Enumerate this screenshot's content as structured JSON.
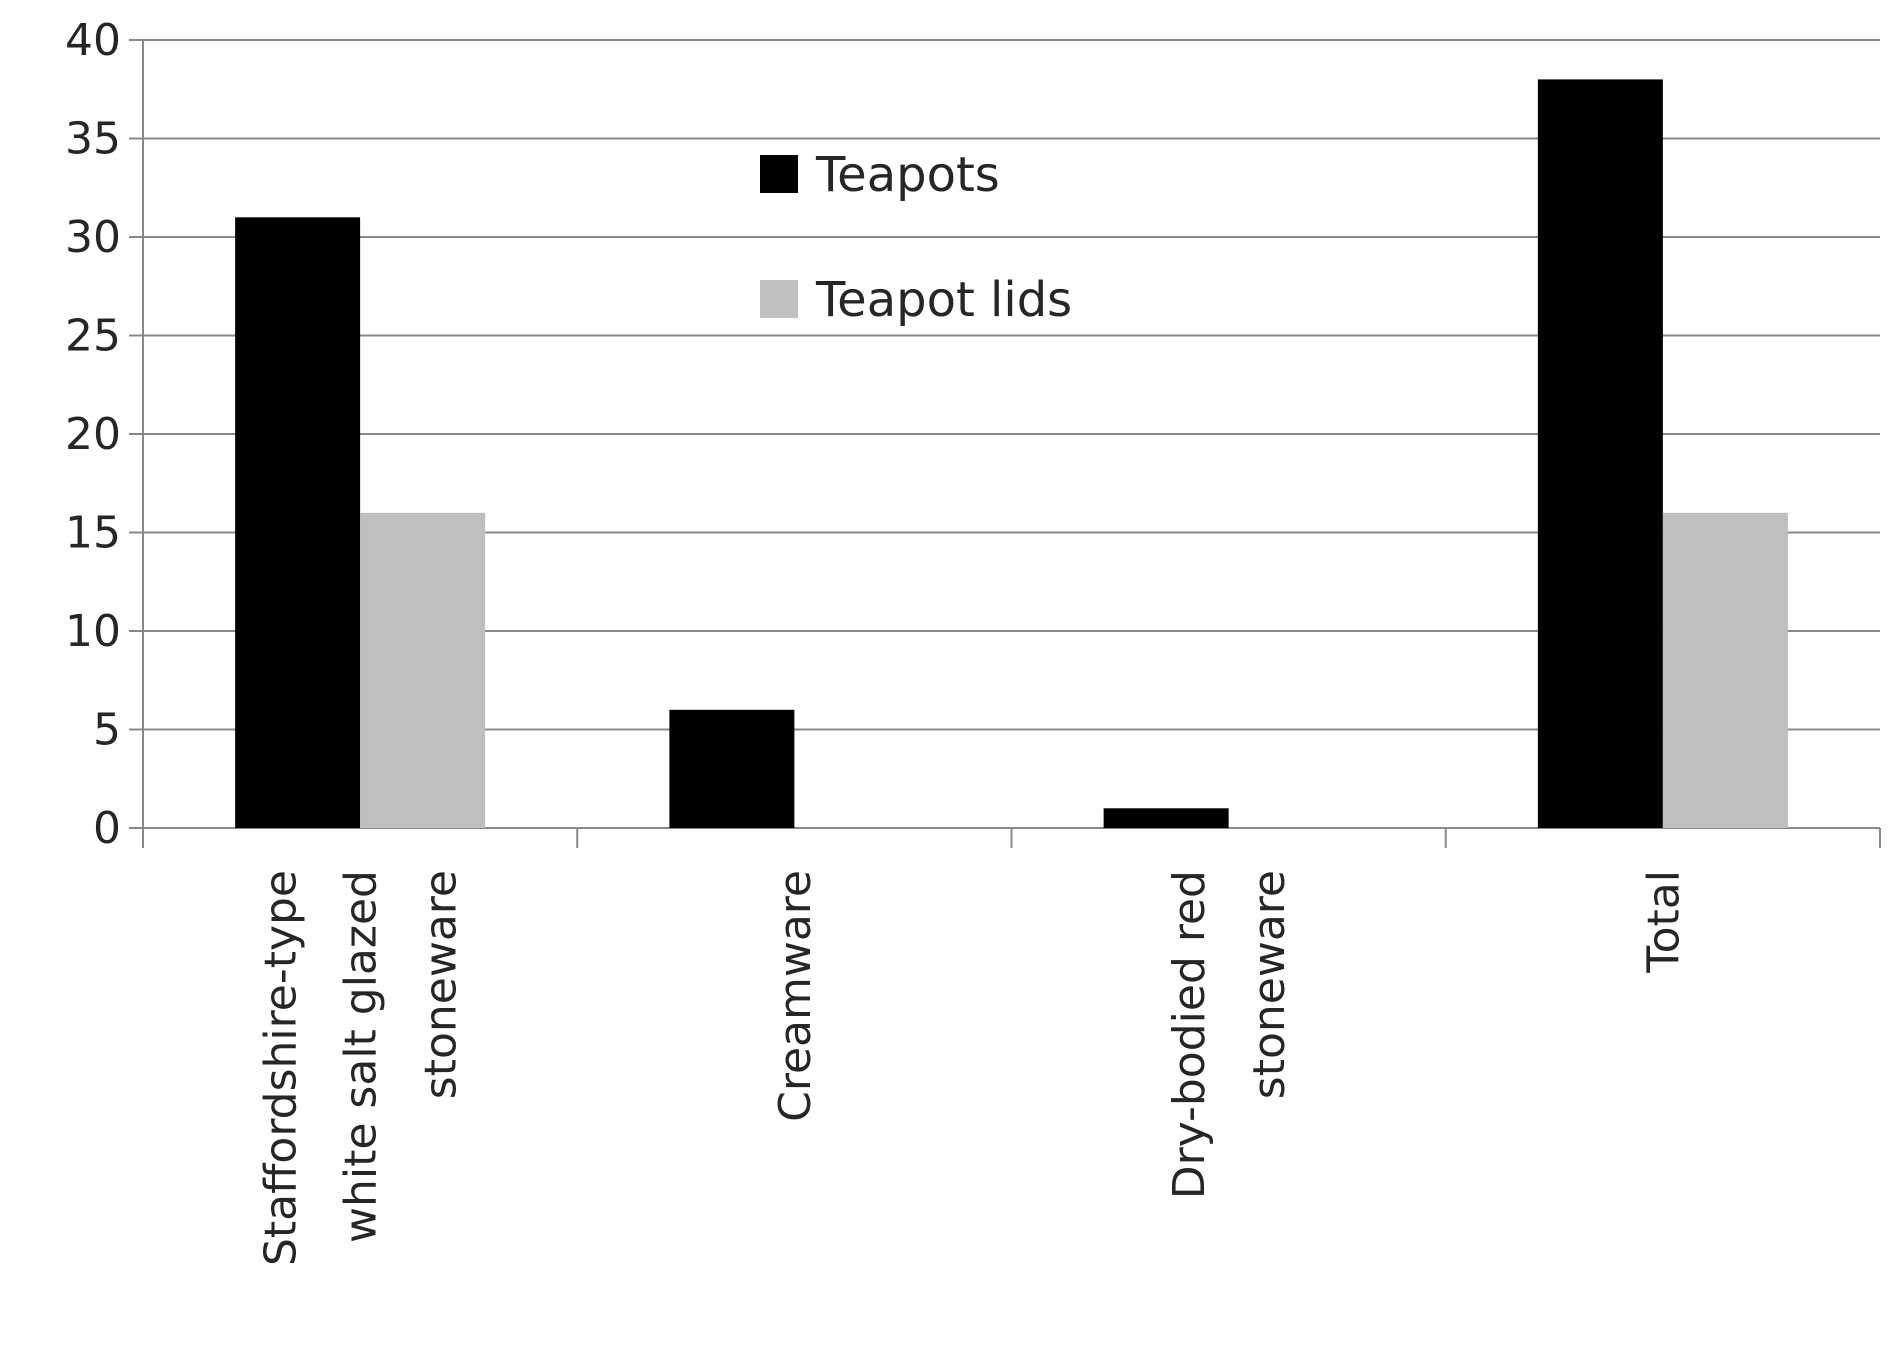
{
  "chart_data": {
    "type": "bar",
    "categories": [
      [
        "Staffordshire-type",
        "white salt glazed",
        "stoneware"
      ],
      [
        "Creamware"
      ],
      [
        "Dry-bodied red",
        "stoneware"
      ],
      [
        "Total"
      ]
    ],
    "series": [
      {
        "name": "Teapots",
        "values": [
          31,
          6,
          1,
          38
        ],
        "color": "#000000"
      },
      {
        "name": "Teapot lids",
        "values": [
          16,
          0,
          0,
          16
        ],
        "color": "#bfbfbf"
      }
    ],
    "ylim": [
      0,
      40
    ],
    "yticks": [
      0,
      5,
      10,
      15,
      20,
      25,
      30,
      35,
      40
    ],
    "grid": true,
    "legend_position": "top-center",
    "title": "",
    "xlabel": "",
    "ylabel": ""
  }
}
